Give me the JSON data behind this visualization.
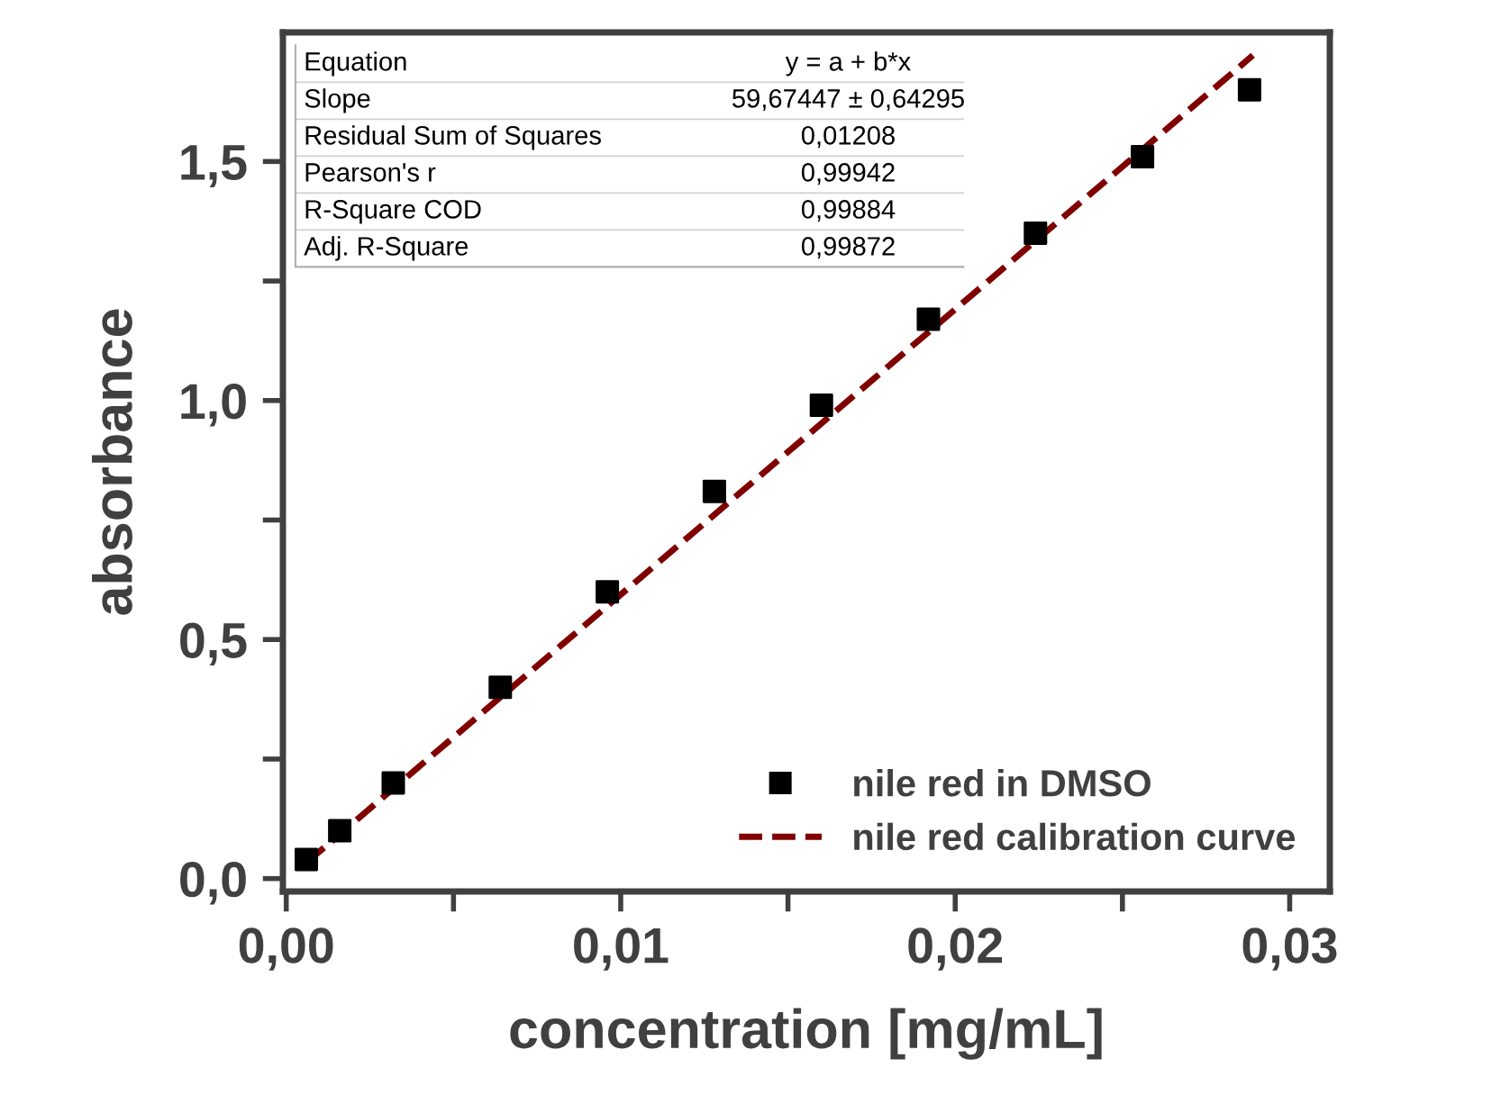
{
  "chart_data": {
    "type": "scatter",
    "xlabel": "concentration [mg/mL]",
    "ylabel": "absorbance",
    "series": [
      {
        "name": "nile red in DMSO",
        "color": "#000000",
        "marker": "square",
        "x": [
          0.0006,
          0.0016,
          0.0032,
          0.0064,
          0.0096,
          0.0128,
          0.016,
          0.0192,
          0.0224,
          0.0256,
          0.0288
        ],
        "values": [
          0.04,
          0.1,
          0.2,
          0.4,
          0.6,
          0.81,
          0.99,
          1.17,
          1.35,
          1.51,
          1.65
        ]
      },
      {
        "name": "nile red calibration curve",
        "type": "line",
        "color": "#800000",
        "line_style": "dashed",
        "marker": "none",
        "x": [
          0.0006,
          0.0289
        ],
        "values": [
          0.033,
          1.722
        ]
      }
    ],
    "xlim": [
      -0.0001,
      0.0312
    ],
    "ylim": [
      -0.027,
      1.77
    ],
    "xticks": [
      {
        "value": 0,
        "label": "0,00"
      },
      {
        "value": 0.005,
        "label": null
      },
      {
        "value": 0.01,
        "label": "0,01"
      },
      {
        "value": 0.015,
        "label": null
      },
      {
        "value": 0.02,
        "label": "0,02"
      },
      {
        "value": 0.025,
        "label": null
      },
      {
        "value": 0.03,
        "label": "0,03"
      }
    ],
    "yticks": [
      {
        "value": 0,
        "label": "0,0"
      },
      {
        "value": 0.25,
        "label": null
      },
      {
        "value": 0.5,
        "label": "0,5"
      },
      {
        "value": 0.75,
        "label": null
      },
      {
        "value": 1.0,
        "label": "1,0"
      },
      {
        "value": 1.25,
        "label": null
      },
      {
        "value": 1.5,
        "label": "1,5"
      }
    ],
    "grid": false,
    "legend": "bottom right",
    "annotations": [
      "Equation",
      "y = a + b*x",
      "Slope",
      "59,67447 ± 0,64295",
      "Residual Sum of Squares",
      "0,01208",
      "Pearson's r",
      "0,99942",
      "R-Square COD",
      "0,99884",
      "Adj. R-Square",
      "0,99872"
    ]
  }
}
